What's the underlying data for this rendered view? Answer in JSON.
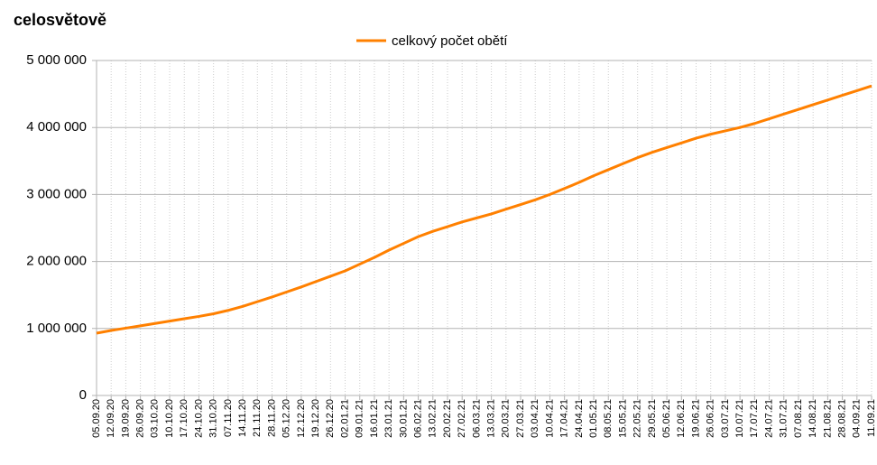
{
  "chart_data": {
    "type": "line",
    "title": "celosvětově",
    "categories": [
      "05.09.20",
      "12.09.20",
      "19.09.20",
      "26.09.20",
      "03.10.20",
      "10.10.20",
      "17.10.20",
      "24.10.20",
      "31.10.20",
      "07.11.20",
      "14.11.20",
      "21.11.20",
      "28.11.20",
      "05.12.20",
      "12.12.20",
      "19.12.20",
      "26.12.20",
      "02.01.21",
      "09.01.21",
      "16.01.21",
      "23.01.21",
      "30.01.21",
      "06.02.21",
      "13.02.21",
      "20.02.21",
      "27.02.21",
      "06.03.21",
      "13.03.21",
      "20.03.21",
      "27.03.21",
      "03.04.21",
      "10.04.21",
      "17.04.21",
      "24.04.21",
      "01.05.21",
      "08.05.21",
      "15.05.21",
      "22.05.21",
      "29.05.21",
      "05.06.21",
      "12.06.21",
      "19.06.21",
      "26.06.21",
      "03.07.21",
      "10.07.21",
      "17.07.21",
      "24.07.21",
      "31.07.21",
      "07.08.21",
      "14.08.21",
      "21.08.21",
      "28.08.21",
      "04.09.21",
      "11.09.21"
    ],
    "series": [
      {
        "name": "celkový počet obětí",
        "color": "#ff8000",
        "values": [
          930000,
          970000,
          1005000,
          1040000,
          1075000,
          1110000,
          1145000,
          1180000,
          1220000,
          1270000,
          1330000,
          1400000,
          1470000,
          1545000,
          1620000,
          1700000,
          1780000,
          1860000,
          1960000,
          2060000,
          2170000,
          2270000,
          2370000,
          2450000,
          2520000,
          2590000,
          2650000,
          2710000,
          2780000,
          2850000,
          2920000,
          3000000,
          3090000,
          3180000,
          3280000,
          3370000,
          3460000,
          3550000,
          3630000,
          3700000,
          3770000,
          3840000,
          3900000,
          3950000,
          4000000,
          4060000,
          4130000,
          4200000,
          4270000,
          4340000,
          4410000,
          4480000,
          4550000,
          4620000
        ]
      }
    ],
    "ylim": [
      0,
      5000000
    ],
    "yticks": [
      0,
      {
        "value": 1000000,
        "label": "1 000 000"
      },
      {
        "value": 2000000,
        "label": "2 000 000"
      },
      {
        "value": 3000000,
        "label": "3 000 000"
      },
      {
        "value": 4000000,
        "label": "4 000 000"
      },
      {
        "value": 5000000,
        "label": "5 000 000"
      }
    ],
    "grid": true,
    "legend": "top"
  }
}
